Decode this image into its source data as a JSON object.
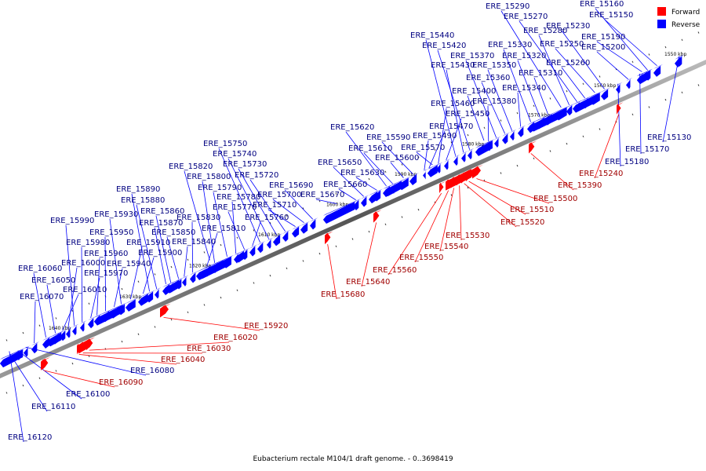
{
  "caption": "Eubacterium rectale M104/1 draft genome. - 0..3698419",
  "legend": {
    "forward": {
      "label": "Forward",
      "color": "#ff0000"
    },
    "reverse": {
      "label": "Reverse",
      "color": "#0000ff"
    }
  },
  "ticks": [
    "1550 kbp",
    "1560 kbp",
    "1570 kbp",
    "1580 kbp",
    "1590 kbp",
    "1600 kbp",
    "1610 kbp",
    "1620 kbp",
    "1630 kbp",
    "1640 kbp"
  ],
  "reverse_genes": [
    "ERE_15130",
    "ERE_15150",
    "ERE_15160",
    "ERE_15170",
    "ERE_15180",
    "ERE_15190",
    "ERE_15200",
    "ERE_15230",
    "ERE_15250",
    "ERE_15260",
    "ERE_15270",
    "ERE_15280",
    "ERE_15290",
    "ERE_15310",
    "ERE_15320",
    "ERE_15330",
    "ERE_15340",
    "ERE_15350",
    "ERE_15360",
    "ERE_15370",
    "ERE_15380",
    "ERE_15400",
    "ERE_15420",
    "ERE_15430",
    "ERE_15440",
    "ERE_15450",
    "ERE_15460",
    "ERE_15470",
    "ERE_15490",
    "ERE_15570",
    "ERE_15590",
    "ERE_15600",
    "ERE_15610",
    "ERE_15620",
    "ERE_15630",
    "ERE_15650",
    "ERE_15660",
    "ERE_15670",
    "ERE_15690",
    "ERE_15700",
    "ERE_15710",
    "ERE_15720",
    "ERE_15730",
    "ERE_15740",
    "ERE_15750",
    "ERE_15760",
    "ERE_15770",
    "ERE_15780",
    "ERE_15790",
    "ERE_15800",
    "ERE_15810",
    "ERE_15820",
    "ERE_15830",
    "ERE_15840",
    "ERE_15850",
    "ERE_15860",
    "ERE_15870",
    "ERE_15880",
    "ERE_15890",
    "ERE_15900",
    "ERE_15910",
    "ERE_15930",
    "ERE_15940",
    "ERE_15950",
    "ERE_15960",
    "ERE_15970",
    "ERE_15980",
    "ERE_15990",
    "ERE_16000",
    "ERE_16010",
    "ERE_16050",
    "ERE_16060",
    "ERE_16070",
    "ERE_16080",
    "ERE_16100",
    "ERE_16110",
    "ERE_16120"
  ],
  "forward_genes": [
    "ERE_15240",
    "ERE_15390",
    "ERE_15500",
    "ERE_15510",
    "ERE_15520",
    "ERE_15530",
    "ERE_15540",
    "ERE_15550",
    "ERE_15560",
    "ERE_15640",
    "ERE_15680",
    "ERE_15920",
    "ERE_16020",
    "ERE_16030",
    "ERE_16040",
    "ERE_16090"
  ]
}
